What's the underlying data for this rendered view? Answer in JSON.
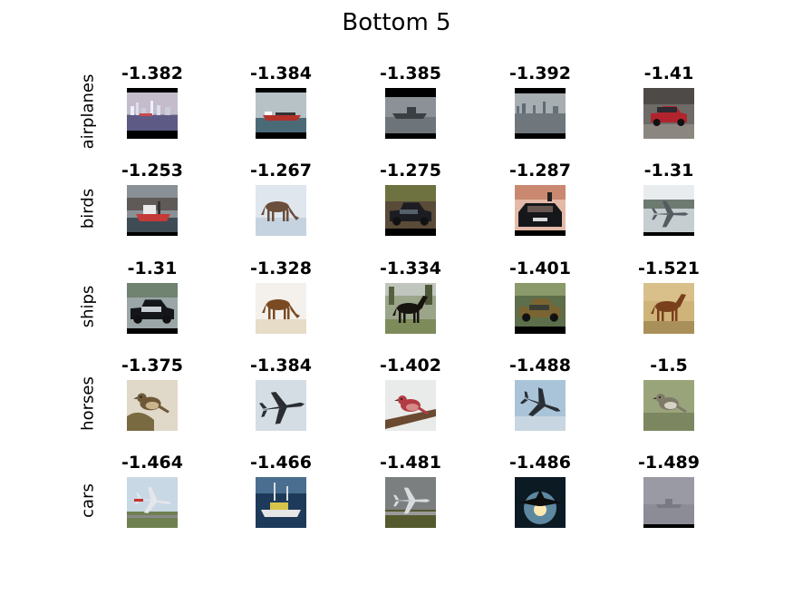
{
  "chart_data": {
    "type": "image-grid",
    "title": "Bottom 5",
    "rows": [
      {
        "label": "airplanes",
        "scores": [
          "-1.382",
          "-1.384",
          "-1.385",
          "-1.392",
          "-1.41"
        ],
        "icons": [
          "city-skyline-photo-icon",
          "cargo-ship-photo-icon",
          "gray-ship-photo-icon",
          "harbor-skyline-photo-icon",
          "red-car-photo-icon"
        ]
      },
      {
        "label": "birds",
        "scores": [
          "-1.253",
          "-1.267",
          "-1.275",
          "-1.287",
          "-1.31"
        ],
        "icons": [
          "tugboat-photo-icon",
          "grazing-horse-snow-photo-icon",
          "dark-sedan-photo-icon",
          "car-rear-photo-icon",
          "seaplane-photo-icon"
        ]
      },
      {
        "label": "ships",
        "scores": [
          "-1.31",
          "-1.328",
          "-1.334",
          "-1.401",
          "-1.521"
        ],
        "icons": [
          "black-car-photo-icon",
          "grazing-horse-photo-icon",
          "black-horse-photo-icon",
          "brown-car-photo-icon",
          "brown-horse-photo-icon"
        ]
      },
      {
        "label": "horses",
        "scores": [
          "-1.375",
          "-1.384",
          "-1.402",
          "-1.488",
          "-1.5"
        ],
        "icons": [
          "wren-on-cactus-photo-icon",
          "bomber-plane-photo-icon",
          "finch-on-branch-photo-icon",
          "plane-in-sky-photo-icon",
          "perched-bird-photo-icon"
        ]
      },
      {
        "label": "cars",
        "scores": [
          "-1.464",
          "-1.466",
          "-1.481",
          "-1.486",
          "-1.489"
        ],
        "icons": [
          "airliner-landing-photo-icon",
          "fishing-boat-photo-icon",
          "plane-on-runway-photo-icon",
          "fighter-jet-photo-icon",
          "ship-in-fog-photo-icon"
        ]
      }
    ]
  }
}
